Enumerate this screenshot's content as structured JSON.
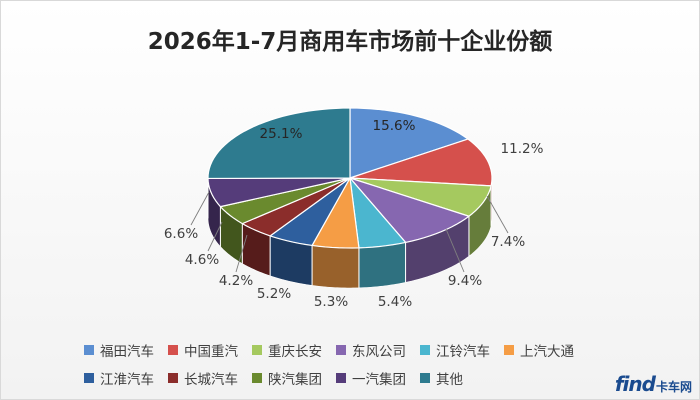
{
  "chart_data": {
    "type": "pie",
    "title": "2026年1-7月商用车市场前十企业份额",
    "categories": [
      "福田汽车",
      "中国重汽",
      "重庆长安",
      "东风公司",
      "江铃汽车",
      "上汽大通",
      "江淮汽车",
      "长城汽车",
      "陕汽集团",
      "一汽集团",
      "其他"
    ],
    "values": [
      15.6,
      11.2,
      7.4,
      9.4,
      5.4,
      5.3,
      5.2,
      4.2,
      4.6,
      6.6,
      25.1
    ],
    "labels": [
      "15.6%",
      "11.2%",
      "7.4%",
      "9.4%",
      "5.4%",
      "5.3%",
      "5.2%",
      "4.2%",
      "4.6%",
      "6.6%",
      "25.1%"
    ],
    "colors": [
      "#5b8ed1",
      "#d5504c",
      "#a5c95f",
      "#8667b0",
      "#4bb6cf",
      "#f59d45",
      "#2e5f9e",
      "#8b2d2b",
      "#6a8a2e",
      "#553c7a",
      "#2e7b8f"
    ],
    "legend_position": "bottom",
    "style": "3d-pie"
  },
  "legend": {
    "rows": [
      [
        0,
        1,
        2,
        3,
        4,
        5
      ],
      [
        6,
        7,
        8,
        9,
        10
      ]
    ]
  },
  "watermark": {
    "latin": "find",
    "cn": "卡车网"
  }
}
